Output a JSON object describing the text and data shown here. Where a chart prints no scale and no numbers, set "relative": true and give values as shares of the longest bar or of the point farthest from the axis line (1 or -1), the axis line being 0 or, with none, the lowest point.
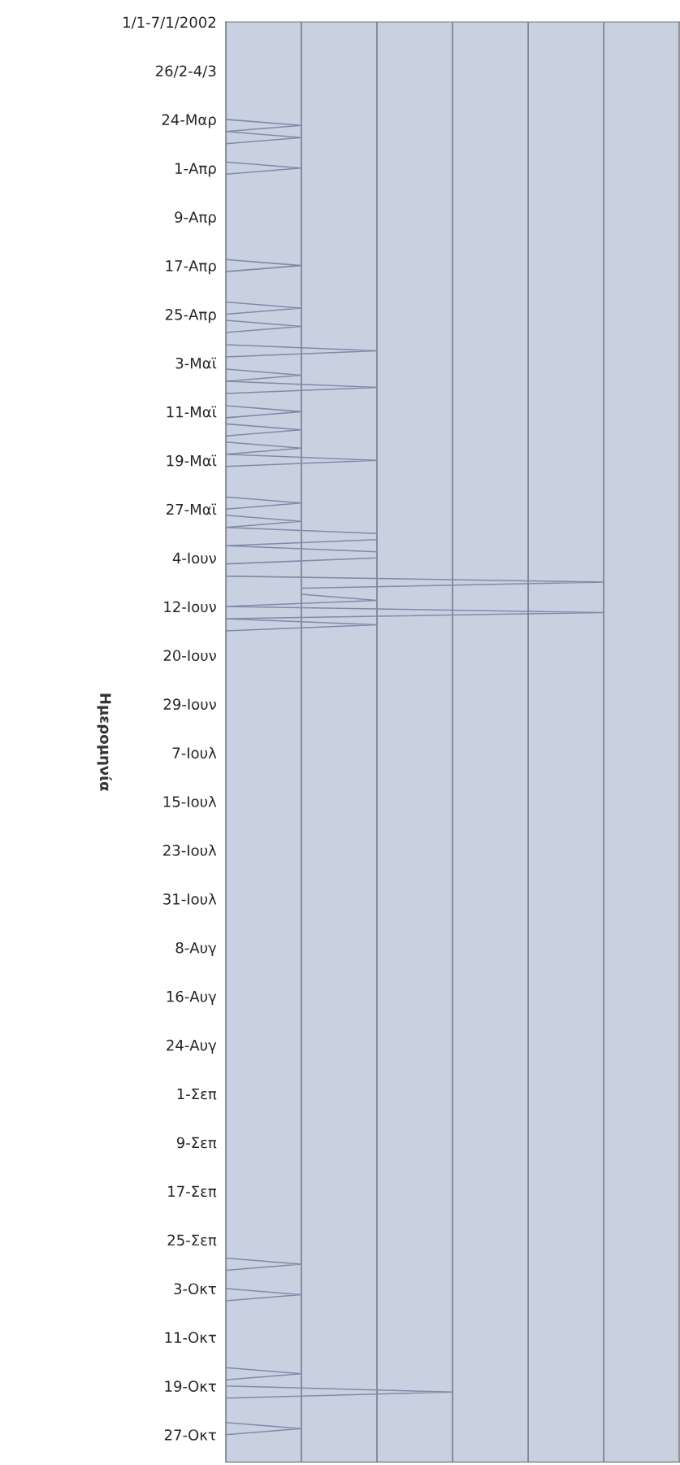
{
  "chart_data": {
    "type": "line",
    "orientation": "horizontal",
    "relative": true,
    "ylabel": "Ημερομηνία",
    "color": "#7f8aa8",
    "grid": "x",
    "legend": false,
    "marker": "none",
    "tick_labels": "y",
    "categories": [
      "1/1-7/1/2002",
      null,
      null,
      null,
      null,
      null,
      null,
      null,
      "26/2-4/3",
      null,
      null,
      null,
      null,
      null,
      null,
      null,
      "24-Μαρ",
      null,
      null,
      null,
      null,
      null,
      null,
      null,
      "1-Απρ",
      null,
      null,
      null,
      null,
      null,
      null,
      null,
      "9-Απρ",
      null,
      null,
      null,
      null,
      null,
      null,
      null,
      "17-Απρ",
      null,
      null,
      null,
      null,
      null,
      null,
      null,
      "25-Απρ",
      null,
      null,
      null,
      null,
      null,
      null,
      null,
      "3-Μαϊ",
      null,
      null,
      null,
      null,
      null,
      null,
      null,
      "11-Μαϊ",
      null,
      null,
      null,
      null,
      null,
      null,
      null,
      "19-Μαϊ",
      null,
      null,
      null,
      null,
      null,
      null,
      null,
      "27-Μαϊ",
      null,
      null,
      null,
      null,
      null,
      null,
      null,
      "4-Ιουν",
      null,
      null,
      null,
      null,
      null,
      null,
      null,
      "12-Ιουν",
      null,
      null,
      null,
      null,
      null,
      null,
      null,
      "20-Ιουν",
      null,
      null,
      null,
      null,
      null,
      null,
      null,
      "29-Ιουν",
      null,
      null,
      null,
      null,
      null,
      null,
      null,
      "7-Ιουλ",
      null,
      null,
      null,
      null,
      null,
      null,
      null,
      "15-Ιουλ",
      null,
      null,
      null,
      null,
      null,
      null,
      null,
      "23-Ιουλ",
      null,
      null,
      null,
      null,
      null,
      null,
      null,
      "31-Ιουλ",
      null,
      null,
      null,
      null,
      null,
      null,
      null,
      "8-Αυγ",
      null,
      null,
      null,
      null,
      null,
      null,
      null,
      "16-Αυγ",
      null,
      null,
      null,
      null,
      null,
      null,
      null,
      "24-Αυγ",
      null,
      null,
      null,
      null,
      null,
      null,
      null,
      "1-Σεπ",
      null,
      null,
      null,
      null,
      null,
      null,
      null,
      "9-Σεπ",
      null,
      null,
      null,
      null,
      null,
      null,
      null,
      "17-Σεπ",
      null,
      null,
      null,
      null,
      null,
      null,
      null,
      "25-Σεπ",
      null,
      null,
      null,
      null,
      null,
      null,
      null,
      "3-Οκτ",
      null,
      null,
      null,
      null,
      null,
      null,
      null,
      "11-Οκτ",
      null,
      null,
      null,
      null,
      null,
      null,
      null,
      "19-Οκτ",
      null,
      null,
      null,
      null,
      null,
      null,
      null,
      "27-Οκτ",
      null,
      null,
      null,
      null
    ],
    "values": [
      0,
      0,
      0,
      0,
      0,
      0,
      0,
      0,
      0,
      0,
      0,
      0,
      0,
      0,
      0,
      0,
      0,
      0.2,
      0,
      0.2,
      0,
      0,
      0,
      0,
      0.2,
      0,
      0,
      0,
      0,
      0,
      0,
      0,
      0,
      0,
      0,
      0,
      0,
      0,
      0,
      0,
      0.2,
      0,
      0,
      0,
      0,
      0,
      0,
      0.2,
      0,
      0,
      0.2,
      0,
      0,
      0,
      0.4,
      0,
      0,
      0,
      0.2,
      0,
      0.4,
      0,
      0,
      0,
      0.2,
      0,
      0,
      0.2,
      0,
      0,
      0.2,
      0,
      0.4,
      0,
      0,
      0,
      0,
      0,
      0,
      0.2,
      0,
      0,
      0.2,
      0,
      0.4,
      0.4,
      0,
      0.4,
      0.4,
      0,
      0,
      0,
      1,
      0.2,
      0.2,
      0.4,
      0,
      1,
      0,
      0.4,
      0,
      0,
      0,
      0,
      0,
      0,
      0,
      0,
      0,
      0,
      0,
      0,
      0,
      0,
      0,
      0,
      0,
      0,
      0,
      0,
      0,
      0,
      0,
      0,
      0,
      0,
      0,
      0,
      0,
      0,
      0,
      0,
      0,
      0,
      0,
      0,
      0,
      0,
      0,
      0,
      0,
      0,
      0,
      0,
      0,
      0,
      0,
      0,
      0,
      0,
      0,
      0,
      0,
      0,
      0,
      0,
      0,
      0,
      0,
      0,
      0,
      0,
      0,
      0,
      0,
      0,
      0,
      0,
      0,
      0,
      0,
      0,
      0,
      0,
      0,
      0,
      0,
      0,
      0,
      0,
      0,
      0,
      0,
      0,
      0,
      0,
      0,
      0,
      0,
      0,
      0,
      0,
      0,
      0,
      0,
      0,
      0,
      0,
      0,
      0,
      0,
      0,
      0,
      0,
      0.2,
      0,
      0,
      0,
      0,
      0.2,
      0,
      0,
      0,
      0,
      0,
      0,
      0,
      0,
      0,
      0,
      0,
      0,
      0.2,
      0,
      0,
      0.6,
      0,
      0,
      0,
      0,
      0,
      0.2,
      0,
      0,
      0,
      0,
      0
    ]
  }
}
